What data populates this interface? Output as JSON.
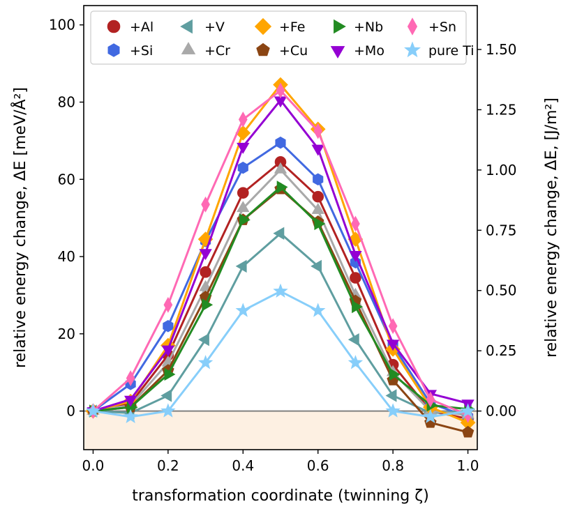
{
  "chart_data": {
    "type": "line",
    "xlabel": "transformation coordinate (twinning ζ)",
    "ylabel_left": "relative energy change, ΔE [meV/Å²]",
    "ylabel_right": "relative energy change, ΔE, [J/m²]",
    "xlim": [
      -0.025,
      1.025
    ],
    "ylim": [
      -10,
      105
    ],
    "x_ticks": [
      "0.0",
      "0.2",
      "0.4",
      "0.6",
      "0.8",
      "1.0"
    ],
    "x_tick_values": [
      0.0,
      0.2,
      0.4,
      0.6,
      0.8,
      1.0
    ],
    "y_ticks_left": [
      "0",
      "20",
      "40",
      "60",
      "80",
      "100"
    ],
    "y_tick_values_left": [
      0,
      20,
      40,
      60,
      80,
      100
    ],
    "y_ticks_right": [
      "0.00",
      "0.25",
      "0.50",
      "0.75",
      "1.00",
      "1.25",
      "1.50"
    ],
    "y_tick_values_right": [
      0.0,
      0.25,
      0.5,
      0.75,
      1.0,
      1.25,
      1.5
    ],
    "right_axis_scale": 0.01602,
    "negative_region_color": "#fdf0e2",
    "zero_line_color": "#808080",
    "x": [
      0.0,
      0.1,
      0.2,
      0.3,
      0.4,
      0.5,
      0.6,
      0.7,
      0.8,
      0.9,
      1.0
    ],
    "series": [
      {
        "name": "+Al",
        "color": "#b22222",
        "marker": "circle",
        "values": [
          0,
          2,
          14.5,
          36,
          56.5,
          64.5,
          55.5,
          34.5,
          12,
          0,
          -2
        ]
      },
      {
        "name": "+Si",
        "color": "#4169e1",
        "marker": "hexagon",
        "values": [
          0,
          7,
          22,
          44,
          63,
          69.5,
          60,
          38.5,
          17,
          2,
          -1.5
        ]
      },
      {
        "name": "+V",
        "color": "#5f9ea0",
        "marker": "triangle-left",
        "values": [
          0,
          -0.5,
          4,
          18.5,
          37.5,
          46,
          37.5,
          18.5,
          4,
          -0.5,
          0
        ]
      },
      {
        "name": "+Cr",
        "color": "#a9a9a9",
        "marker": "triangle-up",
        "values": [
          0,
          1.5,
          12.5,
          32,
          52.5,
          62.5,
          52,
          30,
          10,
          0,
          -1
        ]
      },
      {
        "name": "+Fe",
        "color": "#ffa500",
        "marker": "diamond",
        "values": [
          0,
          2.5,
          17,
          44.5,
          72,
          84.5,
          73,
          44.5,
          16,
          1,
          -3
        ]
      },
      {
        "name": "+Cu",
        "color": "#8b4513",
        "marker": "pentagon",
        "values": [
          0,
          1,
          10.5,
          29.5,
          49.5,
          57.5,
          49,
          28.5,
          8,
          -3,
          -5.5
        ]
      },
      {
        "name": "+Nb",
        "color": "#228b22",
        "marker": "triangle-right",
        "values": [
          0,
          1,
          9.5,
          27.5,
          49.5,
          58,
          48.5,
          27,
          9.5,
          1.5,
          0.5
        ]
      },
      {
        "name": "+Mo",
        "color": "#9400d3",
        "marker": "triangle-down",
        "values": [
          0,
          3,
          16,
          41,
          68.5,
          80.5,
          68,
          40.5,
          17.5,
          4.5,
          2
        ]
      },
      {
        "name": "+Sn",
        "color": "#ff69b4",
        "marker": "thin-diamond",
        "values": [
          0,
          8.5,
          27.5,
          53.5,
          75.5,
          83,
          72.5,
          48.5,
          22,
          3,
          -1
        ]
      },
      {
        "name": "pure Ti",
        "color": "#87cefa",
        "marker": "star",
        "values": [
          0,
          -1.5,
          0,
          12.5,
          26,
          31,
          26,
          12.5,
          0,
          -1.5,
          0
        ]
      }
    ]
  }
}
